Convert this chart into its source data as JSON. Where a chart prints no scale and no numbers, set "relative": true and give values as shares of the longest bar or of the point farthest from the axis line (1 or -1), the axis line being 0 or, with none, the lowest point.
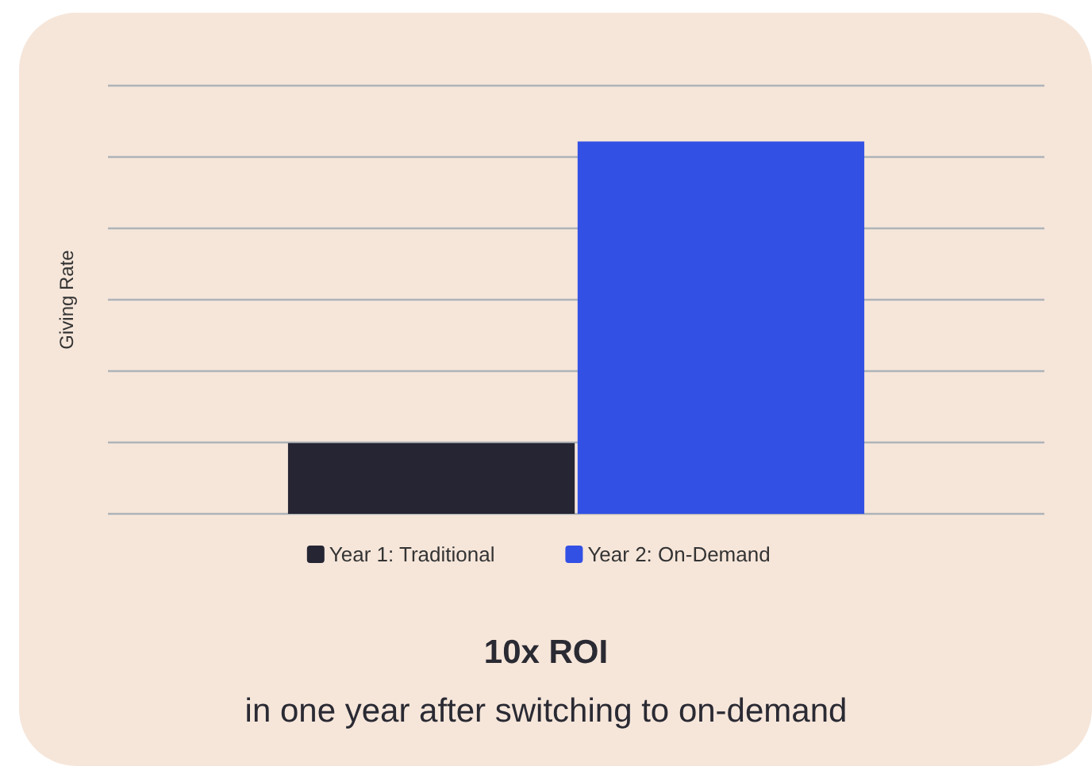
{
  "chart_data": {
    "type": "bar",
    "title": "10x ROI",
    "subtitle": "in one year after switching to on-demand",
    "ylabel": "Giving Rate",
    "categories": [
      null
    ],
    "relative": true,
    "grid": "y",
    "legend": "bottom",
    "series": [
      {
        "name": "Year 1: Traditional",
        "color": "#252533",
        "values": [
          0.19
        ]
      },
      {
        "name": "Year 2: On-Demand",
        "color": "#3350e5",
        "values": [
          1
        ]
      }
    ]
  }
}
